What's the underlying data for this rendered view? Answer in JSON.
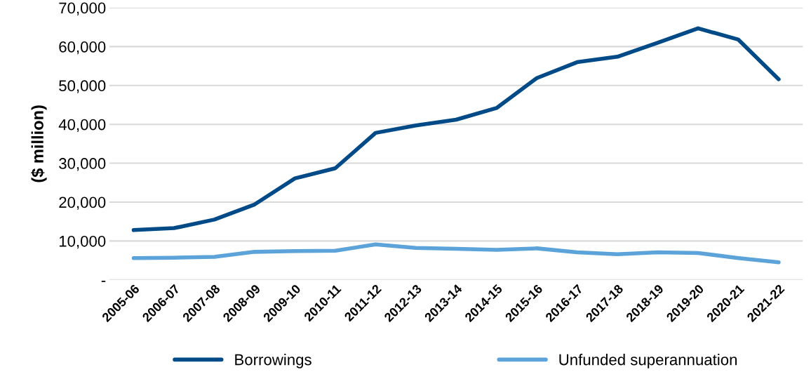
{
  "chart_data": {
    "type": "line",
    "ylabel": "($ million)",
    "categories": [
      "2005-06",
      "2006-07",
      "2007-08",
      "2008-09",
      "2009-10",
      "2010-11",
      "2011-12",
      "2012-13",
      "2013-14",
      "2014-15",
      "2015-16",
      "2016-17",
      "2017-18",
      "2018-19",
      "2019-20",
      "2020-21",
      "2021-22"
    ],
    "series": [
      {
        "name": "Borrowings",
        "color": "#004b87",
        "values": [
          12800,
          13300,
          15500,
          19400,
          26100,
          28700,
          37800,
          39700,
          41200,
          44200,
          51900,
          56000,
          57400,
          61000,
          64700,
          61800,
          51600
        ]
      },
      {
        "name": "Unfunded superannuation",
        "color": "#5ba3d9",
        "values": [
          5600,
          5700,
          5900,
          7200,
          7400,
          7500,
          9100,
          8200,
          8000,
          7700,
          8100,
          7100,
          6600,
          7100,
          6900,
          5600,
          4500
        ]
      }
    ],
    "ylim": [
      0,
      70000
    ],
    "yticks": [
      {
        "value": 0,
        "label": "-"
      },
      {
        "value": 10000,
        "label": "10,000"
      },
      {
        "value": 20000,
        "label": "20,000"
      },
      {
        "value": 30000,
        "label": "30,000"
      },
      {
        "value": 40000,
        "label": "40,000"
      },
      {
        "value": 50000,
        "label": "50,000"
      },
      {
        "value": 60000,
        "label": "60,000"
      },
      {
        "value": 70000,
        "label": "70,000"
      }
    ],
    "grid": "y",
    "legend": "bottom",
    "marker": "none",
    "line_style": "solid"
  }
}
